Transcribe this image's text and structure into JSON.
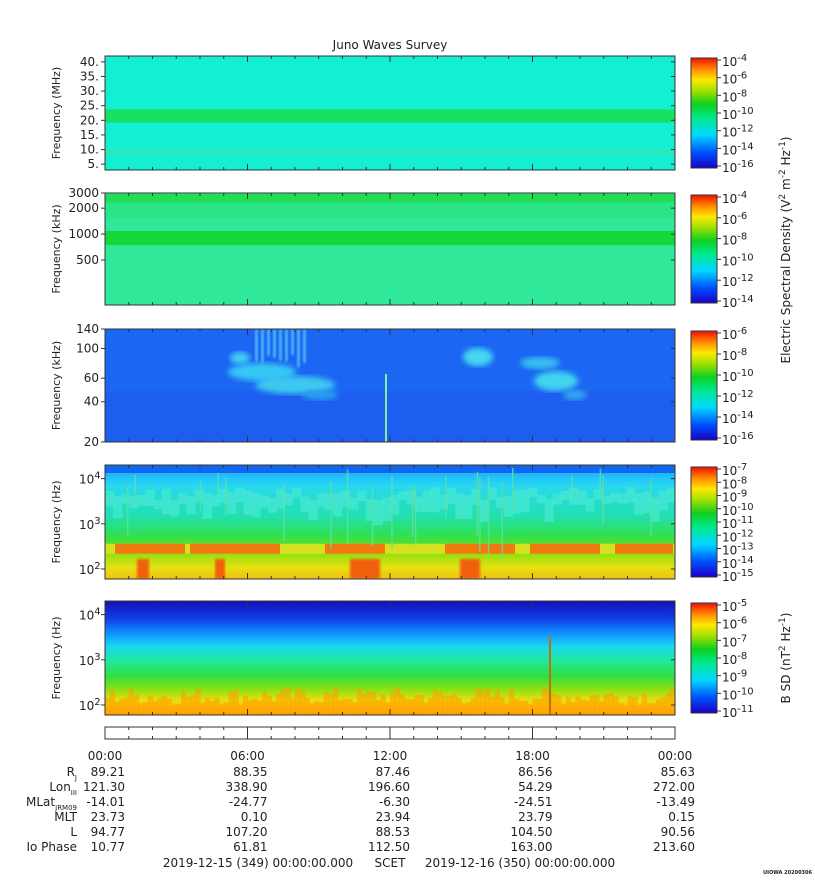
{
  "title": "Juno Waves Survey",
  "chart_data": [
    {
      "type": "heatmap",
      "ylabel": "Frequency (MHz)",
      "yscale": "linear",
      "ylim": [
        3,
        42
      ],
      "yticks": [
        {
          "v": 5,
          "l": "5."
        },
        {
          "v": 10,
          "l": "10."
        },
        {
          "v": 15,
          "l": "15."
        },
        {
          "v": 20,
          "l": "20."
        },
        {
          "v": 25,
          "l": "25."
        },
        {
          "v": 30,
          "l": "30."
        },
        {
          "v": 35,
          "l": "35."
        },
        {
          "v": 40,
          "l": "40."
        }
      ],
      "background": "#13efd2",
      "bands": [
        {
          "at": 21.5,
          "width": 1.5,
          "color": "#18e060"
        },
        {
          "at": 9,
          "width": 0.6,
          "color": "#2fe6bc"
        }
      ],
      "colorbar": {
        "labels": [
          {
            "base": "10",
            "exp": "-4"
          },
          {
            "base": "10",
            "exp": "-6"
          },
          {
            "base": "10",
            "exp": "-8"
          },
          {
            "base": "10",
            "exp": "-10"
          },
          {
            "base": "10",
            "exp": "-12"
          },
          {
            "base": "10",
            "exp": "-14"
          },
          {
            "base": "10",
            "exp": "-16"
          }
        ]
      }
    },
    {
      "type": "heatmap",
      "ylabel": "Frequency (kHz)",
      "yscale": "log",
      "ylim": [
        150,
        3000
      ],
      "yticks": [
        {
          "v": 500,
          "l": "500"
        },
        {
          "v": 1000,
          "l": "1000"
        },
        {
          "v": 2000,
          "l": "2000"
        },
        {
          "v": 3000,
          "l": "3000"
        }
      ],
      "background": "#2fe89a",
      "bands": [
        {
          "at": 900,
          "width": 0.05,
          "color": "#14d838"
        },
        {
          "at": 2600,
          "width": 0.03,
          "color": "#22dd55"
        }
      ],
      "colorbar": {
        "labels": [
          {
            "base": "10",
            "exp": "-4"
          },
          {
            "base": "10",
            "exp": "-6"
          },
          {
            "base": "10",
            "exp": "-8"
          },
          {
            "base": "10",
            "exp": "-10"
          },
          {
            "base": "10",
            "exp": "-12"
          },
          {
            "base": "10",
            "exp": "-14"
          }
        ]
      }
    },
    {
      "type": "heatmap",
      "ylabel": "Frequency (kHz)",
      "yscale": "log",
      "ylim": [
        20,
        140
      ],
      "yticks": [
        {
          "v": 20,
          "l": "20"
        },
        {
          "v": 40,
          "l": "40"
        },
        {
          "v": 60,
          "l": "60"
        },
        {
          "v": 100,
          "l": "100"
        },
        {
          "v": 140,
          "l": "140"
        }
      ],
      "background": "#1d5ef0",
      "colorbar": {
        "labels": [
          {
            "base": "10",
            "exp": "-6"
          },
          {
            "base": "10",
            "exp": "-8"
          },
          {
            "base": "10",
            "exp": "-10"
          },
          {
            "base": "10",
            "exp": "-12"
          },
          {
            "base": "10",
            "exp": "-14"
          },
          {
            "base": "10",
            "exp": "-16"
          }
        ]
      }
    },
    {
      "type": "heatmap",
      "ylabel": "Frequency (Hz)",
      "yscale": "log",
      "ylim": [
        60,
        20000
      ],
      "yticks": [
        {
          "v": 100,
          "l": "10",
          "exp": "2"
        },
        {
          "v": 1000,
          "l": "10",
          "exp": "3"
        },
        {
          "v": 10000,
          "l": "10",
          "exp": "4"
        }
      ],
      "colorbar": {
        "labels": [
          {
            "base": "10",
            "exp": "-7"
          },
          {
            "base": "10",
            "exp": "-8"
          },
          {
            "base": "10",
            "exp": "-9"
          },
          {
            "base": "10",
            "exp": "-10"
          },
          {
            "base": "10",
            "exp": "-11"
          },
          {
            "base": "10",
            "exp": "-12"
          },
          {
            "base": "10",
            "exp": "-13"
          },
          {
            "base": "10",
            "exp": "-14"
          },
          {
            "base": "10",
            "exp": "-15"
          }
        ]
      }
    },
    {
      "type": "heatmap",
      "ylabel": "Frequency (Hz)",
      "yscale": "log",
      "ylim": [
        60,
        20000
      ],
      "yticks": [
        {
          "v": 100,
          "l": "10",
          "exp": "2"
        },
        {
          "v": 1000,
          "l": "10",
          "exp": "3"
        },
        {
          "v": 10000,
          "l": "10",
          "exp": "4"
        }
      ],
      "colorbar": {
        "labels": [
          {
            "base": "10",
            "exp": "-5"
          },
          {
            "base": "10",
            "exp": "-6"
          },
          {
            "base": "10",
            "exp": "-7"
          },
          {
            "base": "10",
            "exp": "-8"
          },
          {
            "base": "10",
            "exp": "-9"
          },
          {
            "base": "10",
            "exp": "-10"
          },
          {
            "base": "10",
            "exp": "-11"
          }
        ]
      }
    }
  ],
  "colorbar_titles": {
    "electric": {
      "pre": "Electric Spectral Density (V",
      "s1": "2",
      "mid": " m",
      "s2": "-2",
      "mid2": " Hz",
      "s3": "-1",
      "post": ")"
    },
    "magnetic": {
      "pre": "B SD (nT",
      "s1": "2",
      "mid": " Hz",
      "s2": "-1",
      "post": ")"
    }
  },
  "time_axis": {
    "ticks": [
      "00:00",
      "06:00",
      "12:00",
      "18:00",
      "00:00"
    ],
    "rows": [
      {
        "label": "R",
        "sub": "J",
        "values": [
          "89.21",
          "88.35",
          "87.46",
          "86.56",
          "85.63"
        ]
      },
      {
        "label": "Lon",
        "sub": "III",
        "values": [
          "121.30",
          "338.90",
          "196.60",
          "54.29",
          "272.00"
        ]
      },
      {
        "label": "MLat",
        "sub": "JRM09",
        "values": [
          "-14.01",
          "-24.77",
          "-6.30",
          "-24.51",
          "-13.49"
        ]
      },
      {
        "label": "MLT",
        "sub": "",
        "values": [
          "23.73",
          "0.10",
          "23.94",
          "23.79",
          "0.15"
        ]
      },
      {
        "label": "L",
        "sub": "",
        "values": [
          "94.77",
          "107.20",
          "88.53",
          "104.50",
          "90.56"
        ]
      },
      {
        "label": "Io Phase",
        "sub": "",
        "values": [
          "10.77",
          "61.81",
          "112.50",
          "163.00",
          "213.60"
        ]
      }
    ],
    "footer_start": "2019-12-15 (349) 00:00:00.000",
    "footer_scet": "SCET",
    "footer_end": "2019-12-16 (350) 00:00:00.000"
  },
  "stamp": "UIOWA 20200306"
}
